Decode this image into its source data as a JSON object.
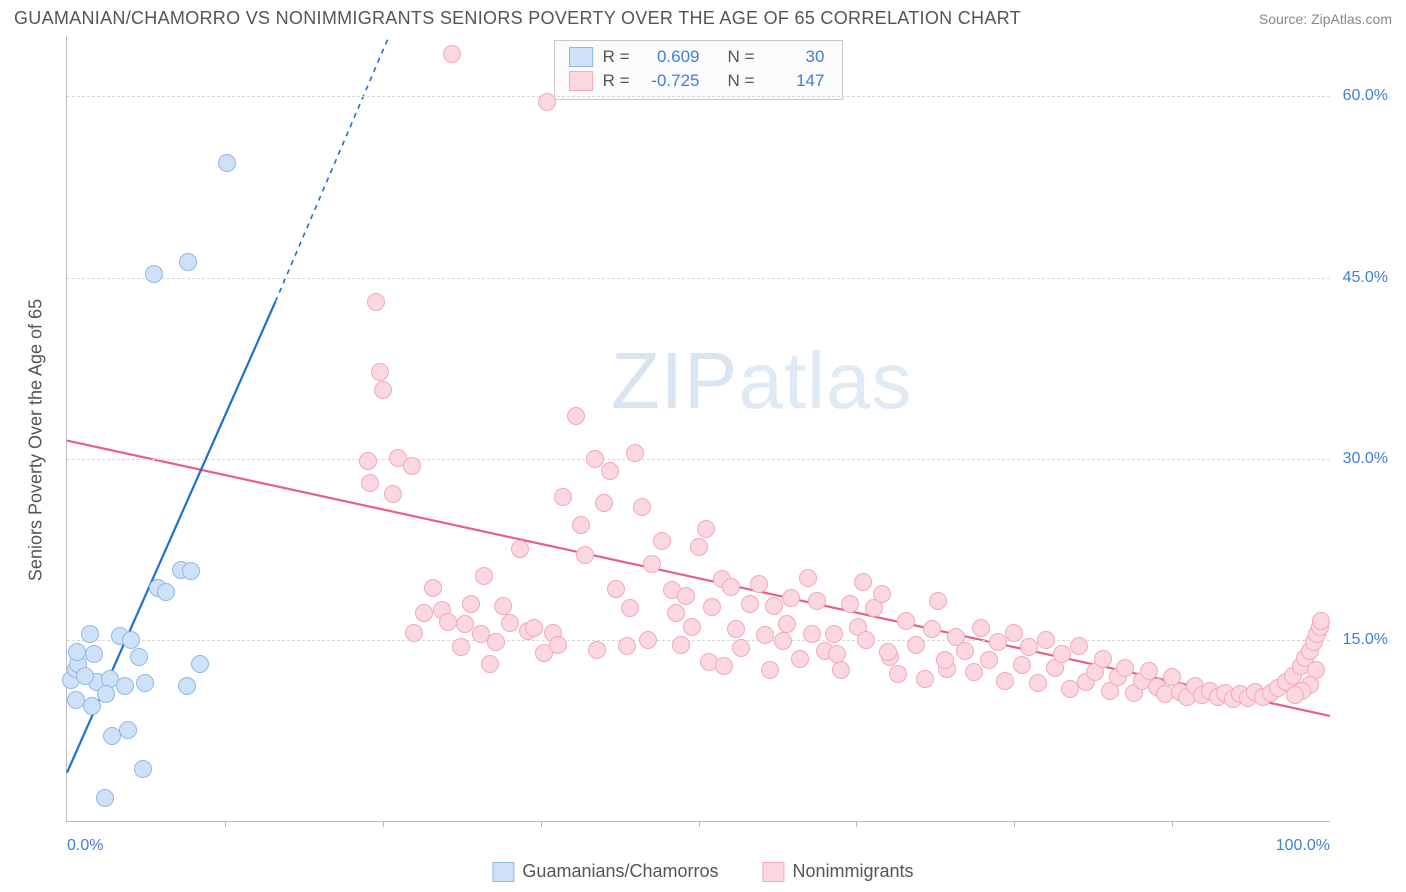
{
  "title": "GUAMANIAN/CHAMORRO VS NONIMMIGRANTS SENIORS POVERTY OVER THE AGE OF 65 CORRELATION CHART",
  "source": "Source: ZipAtlas.com",
  "watermark_bold": "ZIP",
  "watermark_thin": "atlas",
  "ylabel": "Seniors Poverty Over the Age of 65",
  "axes": {
    "xlim": [
      0,
      100
    ],
    "ylim": [
      0,
      65
    ],
    "yticks": [
      {
        "v": 15,
        "label": "15.0%"
      },
      {
        "v": 30,
        "label": "30.0%"
      },
      {
        "v": 45,
        "label": "45.0%"
      },
      {
        "v": 60,
        "label": "60.0%"
      }
    ],
    "xticks_minor": [
      12.5,
      25,
      37.5,
      50,
      62.5,
      75,
      87.5
    ],
    "xlabels": [
      {
        "v": 0,
        "label": "0.0%",
        "align": "left"
      },
      {
        "v": 100,
        "label": "100.0%",
        "align": "right"
      }
    ]
  },
  "marker_radius": 9,
  "series_a": {
    "name": "Guamanians/Chamorros",
    "fill": "#cfe1f7",
    "stroke": "#8fb9e8",
    "line_color": "#1f6fd0",
    "line_width": 2.2,
    "r": 0.609,
    "n": 30,
    "trend": {
      "x1": 0,
      "y1": 4,
      "x2": 16.5,
      "y2": 43
    },
    "trend_ext": {
      "x1": 16.5,
      "y1": 43,
      "x2": 25.5,
      "y2": 65
    },
    "points": [
      [
        0.3,
        11.7
      ],
      [
        0.7,
        12.6
      ],
      [
        0.9,
        13.0
      ],
      [
        0.8,
        14.0
      ],
      [
        1.8,
        15.5
      ],
      [
        2.4,
        11.5
      ],
      [
        3.4,
        11.8
      ],
      [
        0.7,
        10.0
      ],
      [
        2.0,
        9.5
      ],
      [
        3.1,
        10.5
      ],
      [
        4.6,
        11.2
      ],
      [
        4.2,
        15.3
      ],
      [
        5.1,
        15.0
      ],
      [
        5.7,
        13.6
      ],
      [
        6.2,
        11.4
      ],
      [
        7.2,
        19.3
      ],
      [
        7.8,
        19.0
      ],
      [
        9.0,
        20.8
      ],
      [
        9.8,
        20.7
      ],
      [
        9.5,
        11.2
      ],
      [
        4.8,
        7.5
      ],
      [
        3.6,
        7.0
      ],
      [
        6.0,
        4.3
      ],
      [
        3.0,
        1.9
      ],
      [
        2.1,
        13.8
      ],
      [
        1.4,
        12.0
      ],
      [
        6.9,
        45.3
      ],
      [
        9.6,
        46.3
      ],
      [
        12.7,
        54.5
      ],
      [
        10.5,
        13.0
      ]
    ]
  },
  "series_b": {
    "name": "Nonimmigrants",
    "fill": "#fbd7df",
    "stroke": "#f3a9ba",
    "line_color": "#e85f85",
    "line_width": 2.2,
    "r": -0.725,
    "n": 147,
    "trend": {
      "x1": 0,
      "y1": 31.5,
      "x2": 100,
      "y2": 8.7
    },
    "points": [
      [
        30.5,
        63.5
      ],
      [
        38.0,
        59.5
      ],
      [
        24.5,
        43.0
      ],
      [
        24.8,
        37.2
      ],
      [
        25.0,
        35.7
      ],
      [
        26.2,
        30.1
      ],
      [
        27.3,
        29.4
      ],
      [
        23.8,
        29.8
      ],
      [
        24.0,
        28.0
      ],
      [
        25.8,
        27.1
      ],
      [
        29.0,
        19.3
      ],
      [
        29.7,
        17.5
      ],
      [
        30.2,
        16.5
      ],
      [
        31.5,
        16.3
      ],
      [
        32.0,
        18.0
      ],
      [
        33.0,
        20.3
      ],
      [
        34.5,
        17.8
      ],
      [
        35.1,
        16.4
      ],
      [
        35.9,
        22.5
      ],
      [
        36.5,
        15.7
      ],
      [
        37.0,
        16.0
      ],
      [
        38.5,
        15.6
      ],
      [
        39.3,
        26.8
      ],
      [
        40.3,
        33.5
      ],
      [
        40.7,
        24.5
      ],
      [
        41.0,
        22.0
      ],
      [
        41.8,
        30.0
      ],
      [
        42.5,
        26.3
      ],
      [
        43.5,
        19.2
      ],
      [
        44.3,
        14.5
      ],
      [
        45.0,
        30.5
      ],
      [
        45.5,
        26.0
      ],
      [
        46.3,
        21.3
      ],
      [
        47.1,
        23.2
      ],
      [
        47.9,
        19.1
      ],
      [
        48.2,
        17.2
      ],
      [
        49.0,
        18.6
      ],
      [
        49.5,
        16.1
      ],
      [
        50.0,
        22.7
      ],
      [
        50.6,
        24.2
      ],
      [
        51.1,
        17.7
      ],
      [
        51.9,
        20.0
      ],
      [
        52.6,
        19.4
      ],
      [
        53.4,
        14.3
      ],
      [
        54.1,
        18.0
      ],
      [
        54.8,
        19.6
      ],
      [
        55.3,
        15.4
      ],
      [
        56.0,
        17.8
      ],
      [
        56.7,
        14.9
      ],
      [
        57.3,
        18.5
      ],
      [
        58.0,
        13.4
      ],
      [
        58.7,
        20.1
      ],
      [
        59.4,
        18.2
      ],
      [
        60.0,
        14.1
      ],
      [
        60.7,
        15.5
      ],
      [
        61.3,
        12.5
      ],
      [
        62.0,
        18.0
      ],
      [
        62.6,
        16.1
      ],
      [
        63.3,
        15.0
      ],
      [
        63.9,
        17.6
      ],
      [
        64.5,
        18.8
      ],
      [
        65.2,
        13.6
      ],
      [
        65.8,
        12.2
      ],
      [
        66.4,
        16.6
      ],
      [
        67.2,
        14.6
      ],
      [
        67.9,
        11.8
      ],
      [
        68.5,
        15.9
      ],
      [
        69.0,
        18.2
      ],
      [
        69.7,
        12.6
      ],
      [
        70.4,
        15.2
      ],
      [
        71.1,
        14.1
      ],
      [
        71.8,
        12.3
      ],
      [
        72.4,
        16.0
      ],
      [
        73.0,
        13.3
      ],
      [
        73.7,
        14.8
      ],
      [
        74.3,
        11.6
      ],
      [
        75.0,
        15.6
      ],
      [
        75.6,
        12.9
      ],
      [
        76.2,
        14.4
      ],
      [
        76.9,
        11.4
      ],
      [
        77.5,
        15.0
      ],
      [
        78.2,
        12.7
      ],
      [
        78.8,
        13.8
      ],
      [
        79.4,
        10.9
      ],
      [
        80.1,
        14.5
      ],
      [
        80.7,
        11.5
      ],
      [
        81.4,
        12.3
      ],
      [
        82.0,
        13.4
      ],
      [
        82.6,
        10.8
      ],
      [
        83.2,
        11.9
      ],
      [
        83.8,
        12.7
      ],
      [
        84.5,
        10.6
      ],
      [
        85.1,
        11.6
      ],
      [
        85.7,
        12.4
      ],
      [
        86.3,
        11.1
      ],
      [
        86.9,
        10.5
      ],
      [
        87.5,
        11.9
      ],
      [
        88.1,
        10.7
      ],
      [
        88.7,
        10.3
      ],
      [
        89.3,
        11.2
      ],
      [
        89.9,
        10.4
      ],
      [
        90.5,
        10.8
      ],
      [
        91.1,
        10.3
      ],
      [
        91.7,
        10.6
      ],
      [
        92.3,
        10.1
      ],
      [
        92.9,
        10.5
      ],
      [
        93.5,
        10.2
      ],
      [
        94.1,
        10.7
      ],
      [
        94.7,
        10.3
      ],
      [
        95.3,
        10.6
      ],
      [
        95.9,
        11.0
      ],
      [
        96.5,
        11.5
      ],
      [
        97.1,
        12.0
      ],
      [
        97.7,
        12.8
      ],
      [
        98.0,
        13.5
      ],
      [
        98.4,
        14.1
      ],
      [
        98.7,
        14.8
      ],
      [
        99.0,
        15.5
      ],
      [
        99.2,
        16.1
      ],
      [
        99.3,
        16.6
      ],
      [
        98.9,
        12.5
      ],
      [
        98.4,
        11.3
      ],
      [
        97.8,
        10.8
      ],
      [
        97.2,
        10.4
      ],
      [
        32.8,
        15.5
      ],
      [
        34.0,
        14.8
      ],
      [
        37.8,
        13.9
      ],
      [
        42.0,
        14.2
      ],
      [
        46.0,
        15.0
      ],
      [
        50.8,
        13.2
      ],
      [
        53.0,
        15.9
      ],
      [
        57.0,
        16.3
      ],
      [
        61.0,
        13.8
      ],
      [
        65.0,
        14.0
      ],
      [
        69.5,
        13.3
      ],
      [
        27.5,
        15.6
      ],
      [
        28.3,
        17.2
      ],
      [
        31.2,
        14.4
      ],
      [
        33.5,
        13.0
      ],
      [
        38.9,
        14.6
      ],
      [
        43.0,
        29.0
      ],
      [
        44.6,
        17.6
      ],
      [
        48.6,
        14.6
      ],
      [
        52.0,
        12.8
      ],
      [
        55.7,
        12.5
      ],
      [
        59.0,
        15.5
      ],
      [
        63.0,
        19.8
      ]
    ]
  },
  "legend_top": {
    "r_label": "R =",
    "n_label": "N ="
  },
  "legend_bottom_a": "Guamanians/Chamorros",
  "legend_bottom_b": "Nonimmigrants"
}
